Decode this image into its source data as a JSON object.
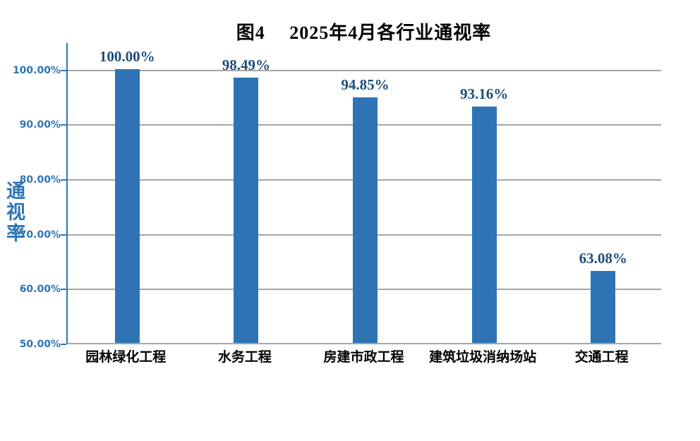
{
  "title": "图4　 2025年4月各行业通视率",
  "y_axis_title": "通视率",
  "colors": {
    "bar": "#2E74B5",
    "axis_line": "#2E75B6",
    "tick_label": "#2E75B6",
    "data_label": "#1F4E79",
    "gridline": "#A6A6A6",
    "category_label": "#000000",
    "title": "#000000",
    "background": "#FFFFFF"
  },
  "chart_data": {
    "type": "bar",
    "title": "图4　 2025年4月各行业通视率",
    "categories": [
      "园林绿化工程",
      "水务工程",
      "房建市政工程",
      "建筑垃圾消纳场站",
      "交通工程"
    ],
    "values": [
      100.0,
      98.49,
      94.85,
      93.16,
      63.08
    ],
    "data_labels": [
      "100.00%",
      "98.49%",
      "94.85%",
      "93.16%",
      "63.08%"
    ],
    "xlabel": "",
    "ylabel": "通视率",
    "ylim": [
      50,
      105
    ],
    "y_tick_values": [
      100,
      90,
      80,
      70,
      60,
      50
    ],
    "y_tick_labels": [
      "100.00%",
      "90.00%",
      "80.00%",
      "70.00%",
      "60.00%",
      "50.00%"
    ],
    "grid": true,
    "legend": false
  }
}
